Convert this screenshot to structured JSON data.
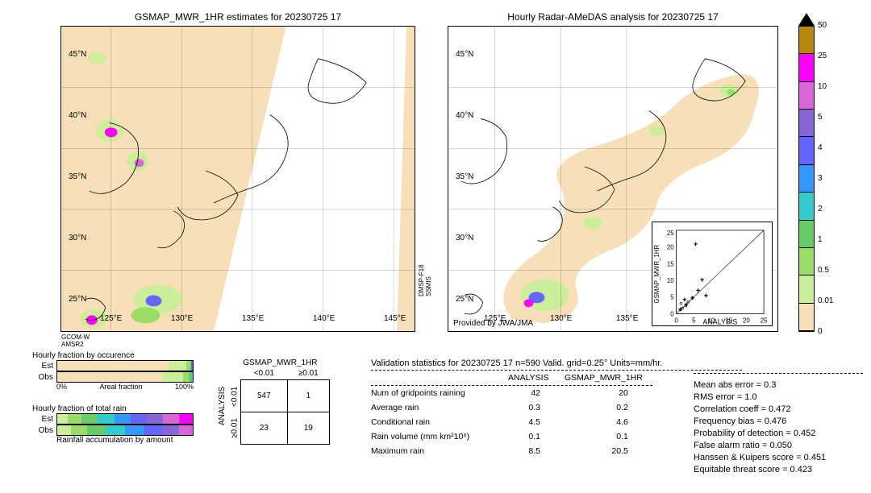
{
  "titles": {
    "left": "GSMAP_MWR_1HR estimates for 20230725 17",
    "right": "Hourly Radar-AMeDAS analysis for 20230725 17"
  },
  "left_map": {
    "x_ticks": [
      "125°E",
      "130°E",
      "135°E",
      "140°E",
      "145°E"
    ],
    "y_ticks": [
      "25°N",
      "30°N",
      "35°N",
      "40°N",
      "45°N"
    ],
    "bg_color": "#f7dfb8",
    "ocean_color": "#ffffff",
    "sat_labels_bottom": {
      "line1": "GCOM-W",
      "line2": "AMSR2"
    },
    "sat_labels_right": {
      "line1": "DMSP-F18",
      "line2": "SSMIS"
    }
  },
  "right_map": {
    "x_ticks": [
      "125°E",
      "130°E",
      "135°E"
    ],
    "y_ticks": [
      "25°N",
      "30°N",
      "35°N",
      "40°N",
      "45°N"
    ],
    "provided_by": "Provided by JWA/JMA",
    "bg_color": "#ffffff",
    "band_color": "#f7dfb8"
  },
  "scatter_inset": {
    "xlabel": "ANALYSIS",
    "ylabel": "GSMAP_MWR_1HR",
    "lim": [
      0,
      25
    ],
    "ticks": [
      0,
      5,
      10,
      15,
      20,
      25
    ]
  },
  "colorbar": {
    "ticks": [
      "50",
      "25",
      "10",
      "5",
      "4",
      "3",
      "2",
      "1",
      "0.5",
      "0.01",
      "0"
    ],
    "colors": [
      "#b8860b",
      "#ff00ff",
      "#d966d9",
      "#8866d9",
      "#6666ff",
      "#3399ff",
      "#33cccc",
      "#66cc66",
      "#99dd66",
      "#ccee99",
      "#f7dfb8"
    ],
    "triangle_color": "#000000"
  },
  "hourly_bars": {
    "occ_title": "Hourly fraction by occurence",
    "rain_title": "Hourly fraction of total rain",
    "accum_title": "Rainfall accumulation by amount",
    "row_labels": [
      "Est",
      "Obs"
    ],
    "axis_left": "0%",
    "axis_right": "100%",
    "axis_mid": "Areal fraction",
    "occ_est_segs": [
      {
        "w": 82,
        "c": "#f7dfb8"
      },
      {
        "w": 13,
        "c": "#ccee99"
      },
      {
        "w": 3,
        "c": "#99dd66"
      },
      {
        "w": 1,
        "c": "#66cc66"
      },
      {
        "w": 1,
        "c": "#6666ff"
      }
    ],
    "occ_obs_segs": [
      {
        "w": 78,
        "c": "#f7dfb8"
      },
      {
        "w": 15,
        "c": "#ccee99"
      },
      {
        "w": 4,
        "c": "#99dd66"
      },
      {
        "w": 2,
        "c": "#66cc66"
      },
      {
        "w": 1,
        "c": "#33cccc"
      }
    ],
    "rain_est_segs": [
      {
        "w": 8,
        "c": "#ccee99"
      },
      {
        "w": 10,
        "c": "#99dd66"
      },
      {
        "w": 12,
        "c": "#66cc66"
      },
      {
        "w": 12,
        "c": "#33cccc"
      },
      {
        "w": 12,
        "c": "#3399ff"
      },
      {
        "w": 12,
        "c": "#6666ff"
      },
      {
        "w": 12,
        "c": "#8866d9"
      },
      {
        "w": 12,
        "c": "#d966d9"
      },
      {
        "w": 10,
        "c": "#ff00ff"
      }
    ],
    "rain_obs_segs": [
      {
        "w": 10,
        "c": "#ccee99"
      },
      {
        "w": 12,
        "c": "#99dd66"
      },
      {
        "w": 14,
        "c": "#66cc66"
      },
      {
        "w": 14,
        "c": "#33cccc"
      },
      {
        "w": 14,
        "c": "#3399ff"
      },
      {
        "w": 14,
        "c": "#6666ff"
      },
      {
        "w": 12,
        "c": "#8866d9"
      },
      {
        "w": 10,
        "c": "#d966d9"
      }
    ]
  },
  "contingency": {
    "col_header": "GSMAP_MWR_1HR",
    "row_header": "ANALYSIS",
    "col_labels": [
      "<0.01",
      "≥0.01"
    ],
    "row_labels": [
      "<0.01",
      "≥0.01"
    ],
    "cells": [
      [
        "547",
        "1"
      ],
      [
        "23",
        "19"
      ]
    ]
  },
  "validation": {
    "title": "Validation statistics for 20230725 17  n=590 Valid. grid=0.25° Units=mm/hr.",
    "col_headers": [
      "",
      "ANALYSIS",
      "GSMAP_MWR_1HR"
    ],
    "rows": [
      {
        "label": "Num of gridpoints raining",
        "a": "42",
        "b": "20"
      },
      {
        "label": "Average rain",
        "a": "0.3",
        "b": "0.2"
      },
      {
        "label": "Conditional rain",
        "a": "4.5",
        "b": "4.6"
      },
      {
        "label": "Rain volume (mm km²10⁶)",
        "a": "0.1",
        "b": "0.1"
      },
      {
        "label": "Maximum rain",
        "a": "8.5",
        "b": "20.5"
      }
    ],
    "right_stats": [
      "Mean abs error =    0.3",
      "RMS error =    1.0",
      "Correlation coeff =  0.472",
      "Frequency bias =  0.476",
      "Probability of detection =  0.452",
      "False alarm ratio =  0.050",
      "Hanssen & Kuipers score =  0.451",
      "Equitable threat score =  0.423"
    ]
  }
}
